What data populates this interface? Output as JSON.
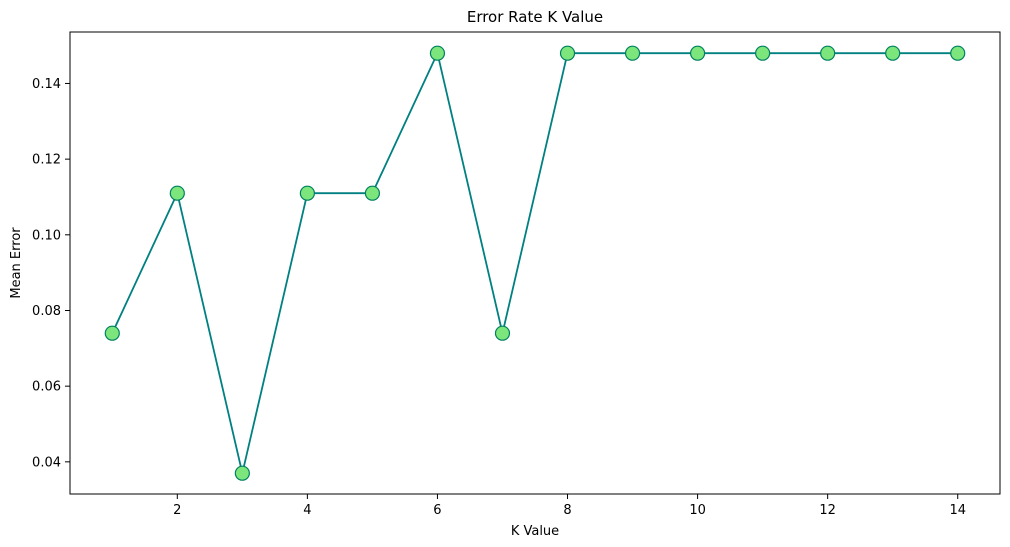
{
  "chart_data": {
    "type": "line",
    "title": "Error Rate K Value",
    "xlabel": "K Value",
    "ylabel": "Mean Error",
    "x": [
      1,
      2,
      3,
      4,
      5,
      6,
      7,
      8,
      9,
      10,
      11,
      12,
      13,
      14
    ],
    "series": [
      {
        "values": [
          0.074,
          0.111,
          0.037,
          0.111,
          0.111,
          0.148,
          0.074,
          0.148,
          0.148,
          0.148,
          0.148,
          0.148,
          0.148,
          0.148
        ]
      }
    ],
    "xlim": [
      0.35,
      14.65
    ],
    "ylim": [
      0.0315,
      0.1536
    ],
    "xticks": [
      2,
      4,
      6,
      8,
      10,
      12,
      14
    ],
    "xtick_labels": [
      "2",
      "4",
      "6",
      "8",
      "10",
      "12",
      "14"
    ],
    "yticks": [
      0.04,
      0.06,
      0.08,
      0.1,
      0.12,
      0.14
    ],
    "ytick_labels": [
      "0.04",
      "0.06",
      "0.08",
      "0.10",
      "0.12",
      "0.14"
    ],
    "grid": false,
    "line_color": "#008080",
    "marker_fill": "#7CE57C",
    "marker_edge": "#008060"
  }
}
